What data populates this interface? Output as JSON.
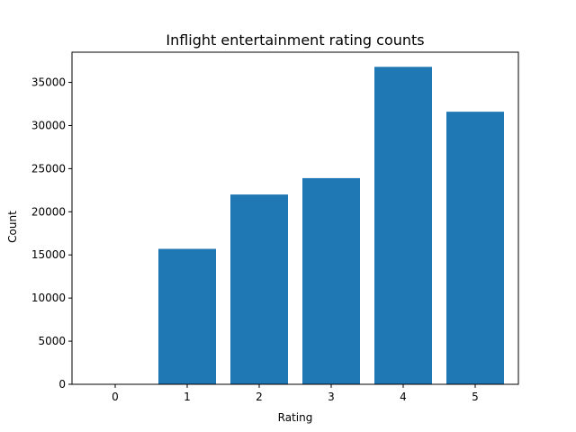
{
  "chart_data": {
    "type": "bar",
    "title": "Inflight entertainment rating counts",
    "xlabel": "Rating",
    "ylabel": "Count",
    "categories": [
      "0",
      "1",
      "2",
      "3",
      "4",
      "5"
    ],
    "values": [
      0,
      15700,
      22000,
      23900,
      36800,
      31600
    ],
    "ylim": [
      0,
      38500
    ],
    "yticks": [
      0,
      5000,
      10000,
      15000,
      20000,
      25000,
      30000,
      35000
    ],
    "grid": false,
    "legend": "none",
    "bar_color": "#1f77b4"
  }
}
